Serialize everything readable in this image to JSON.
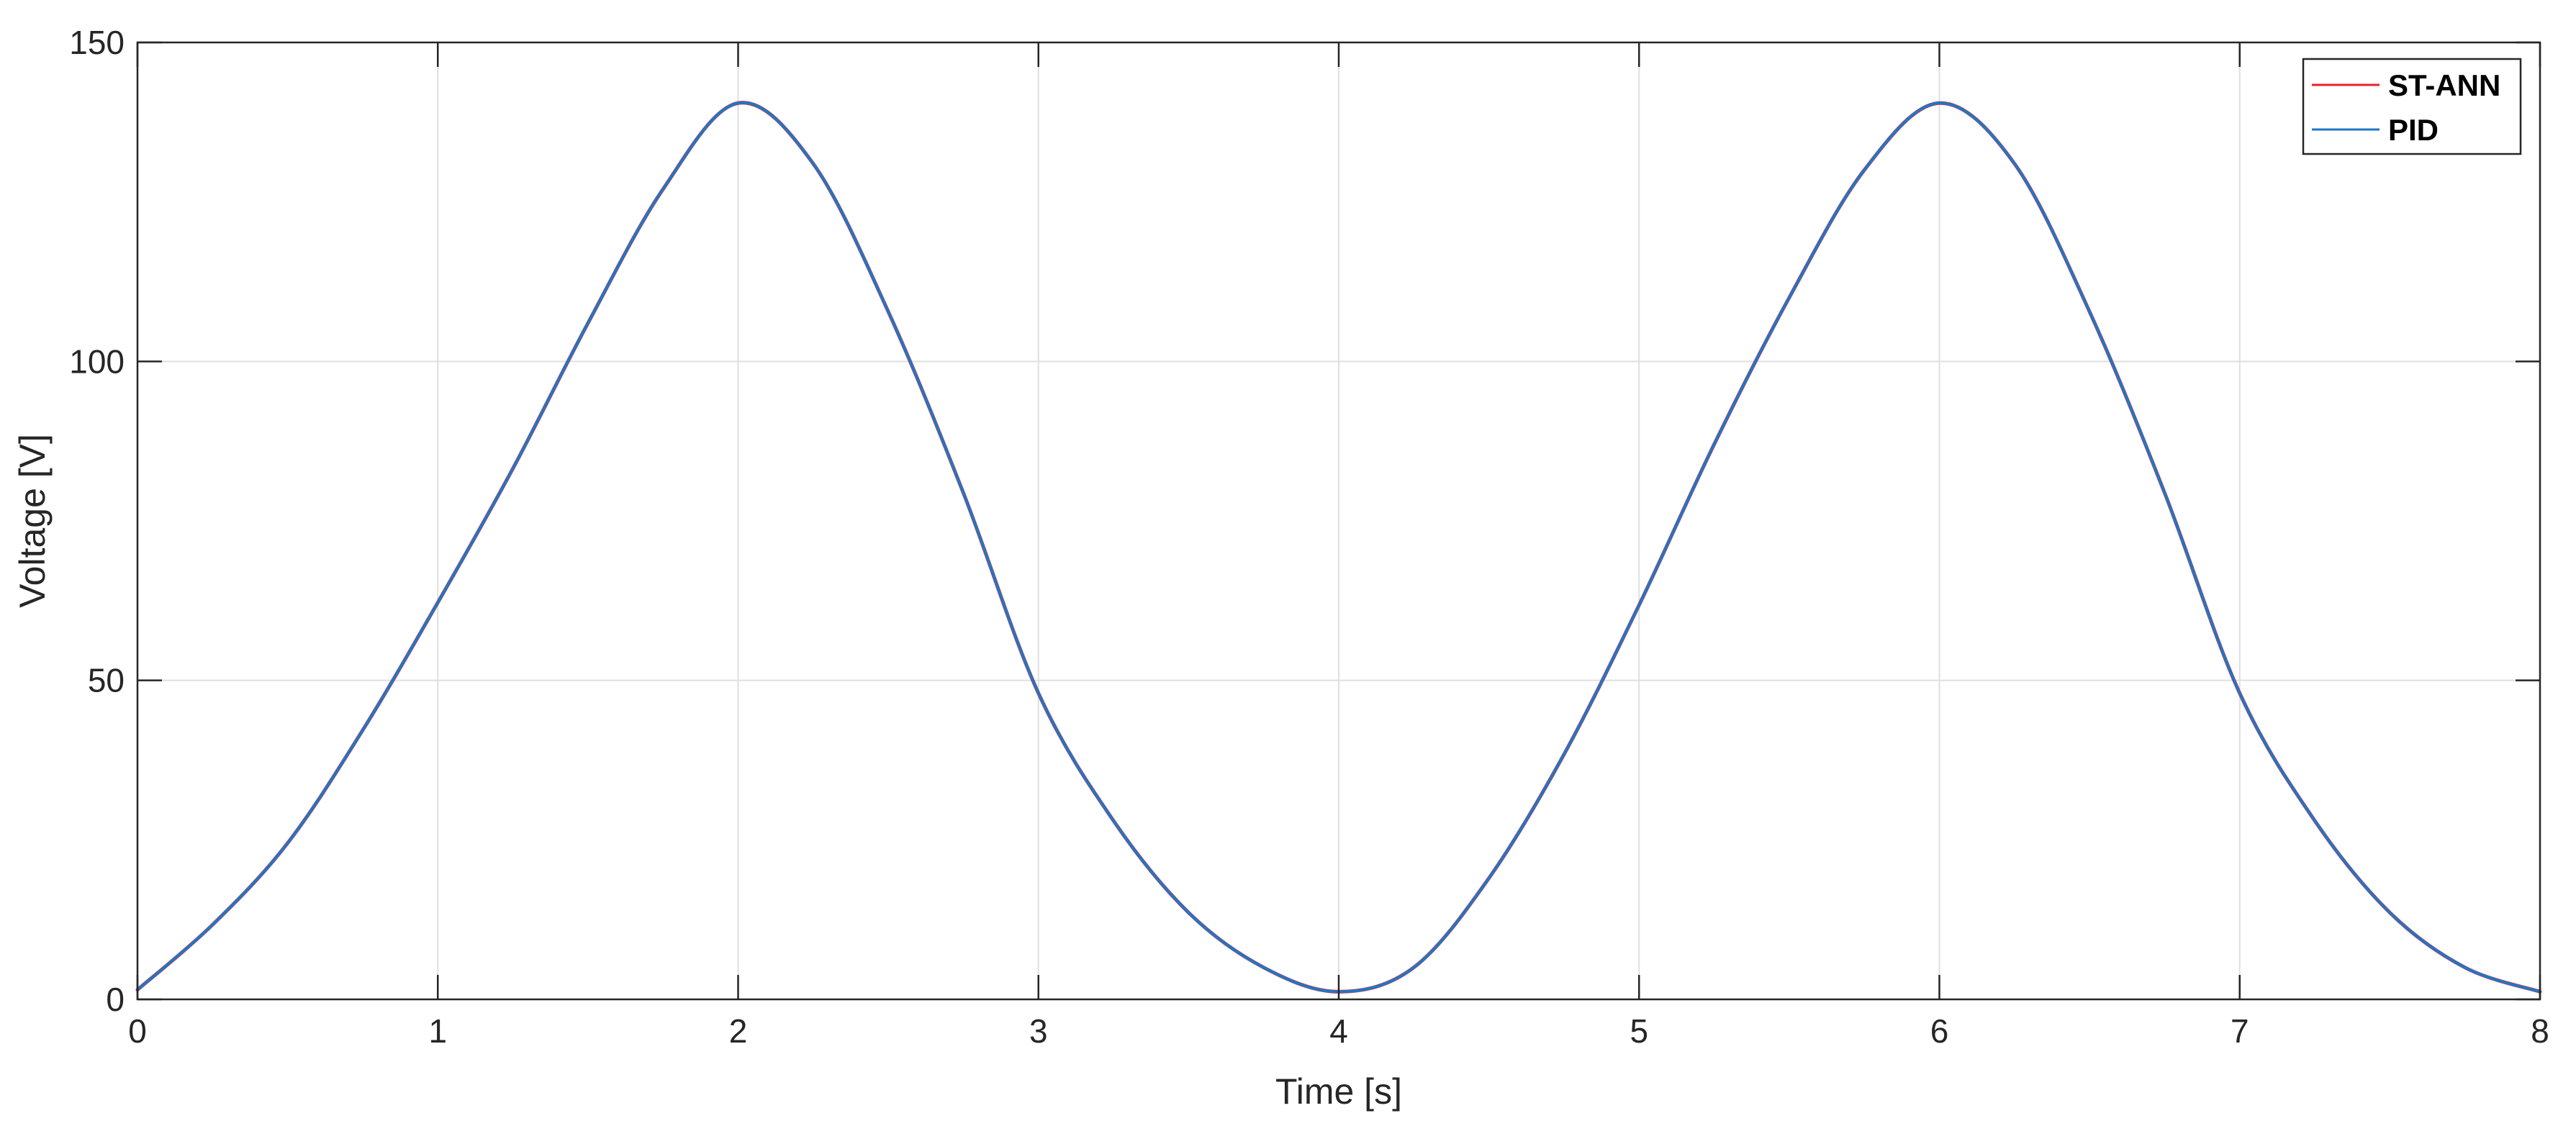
{
  "chart_data": {
    "type": "line",
    "title": "",
    "xlabel": "Time [s]",
    "ylabel": "Voltage [V]",
    "xlim": [
      0,
      8
    ],
    "ylim": [
      0,
      150
    ],
    "xticks": [
      0,
      1,
      2,
      3,
      4,
      5,
      6,
      7,
      8
    ],
    "yticks": [
      0,
      50,
      100,
      150
    ],
    "grid": true,
    "legend_position": "top-right",
    "x": [
      0,
      0.25,
      0.5,
      0.75,
      1,
      1.25,
      1.5,
      1.75,
      2,
      2.25,
      2.5,
      2.75,
      3,
      3.25,
      3.5,
      3.75,
      4,
      4.25,
      4.5,
      4.75,
      5,
      5.25,
      5.5,
      5.75,
      6,
      6.25,
      6.5,
      6.75,
      7,
      7.25,
      7.5,
      7.75,
      8
    ],
    "series": [
      {
        "name": "ST-ANN",
        "color": "#e8212a",
        "values": [
          1.5,
          11.7,
          24.5,
          42.2,
          62.2,
          83.2,
          106.0,
          127.0,
          140.5,
          131.0,
          107.8,
          79.4,
          48.0,
          28.0,
          13.6,
          5.0,
          1.2,
          5.0,
          19.0,
          38.4,
          61.8,
          87.0,
          110.0,
          130.0,
          140.5,
          131.0,
          107.8,
          79.4,
          48.0,
          28.0,
          13.6,
          5.0,
          1.2
        ]
      },
      {
        "name": "PID",
        "color": "#1f77c4",
        "values": [
          1.5,
          11.7,
          24.5,
          42.2,
          62.2,
          83.2,
          106.0,
          127.0,
          140.5,
          131.0,
          107.8,
          79.4,
          48.0,
          28.0,
          13.6,
          5.0,
          1.2,
          5.0,
          19.0,
          38.4,
          61.8,
          87.0,
          110.0,
          130.0,
          140.5,
          131.0,
          107.8,
          79.4,
          48.0,
          28.0,
          13.6,
          5.0,
          1.2
        ]
      }
    ]
  }
}
